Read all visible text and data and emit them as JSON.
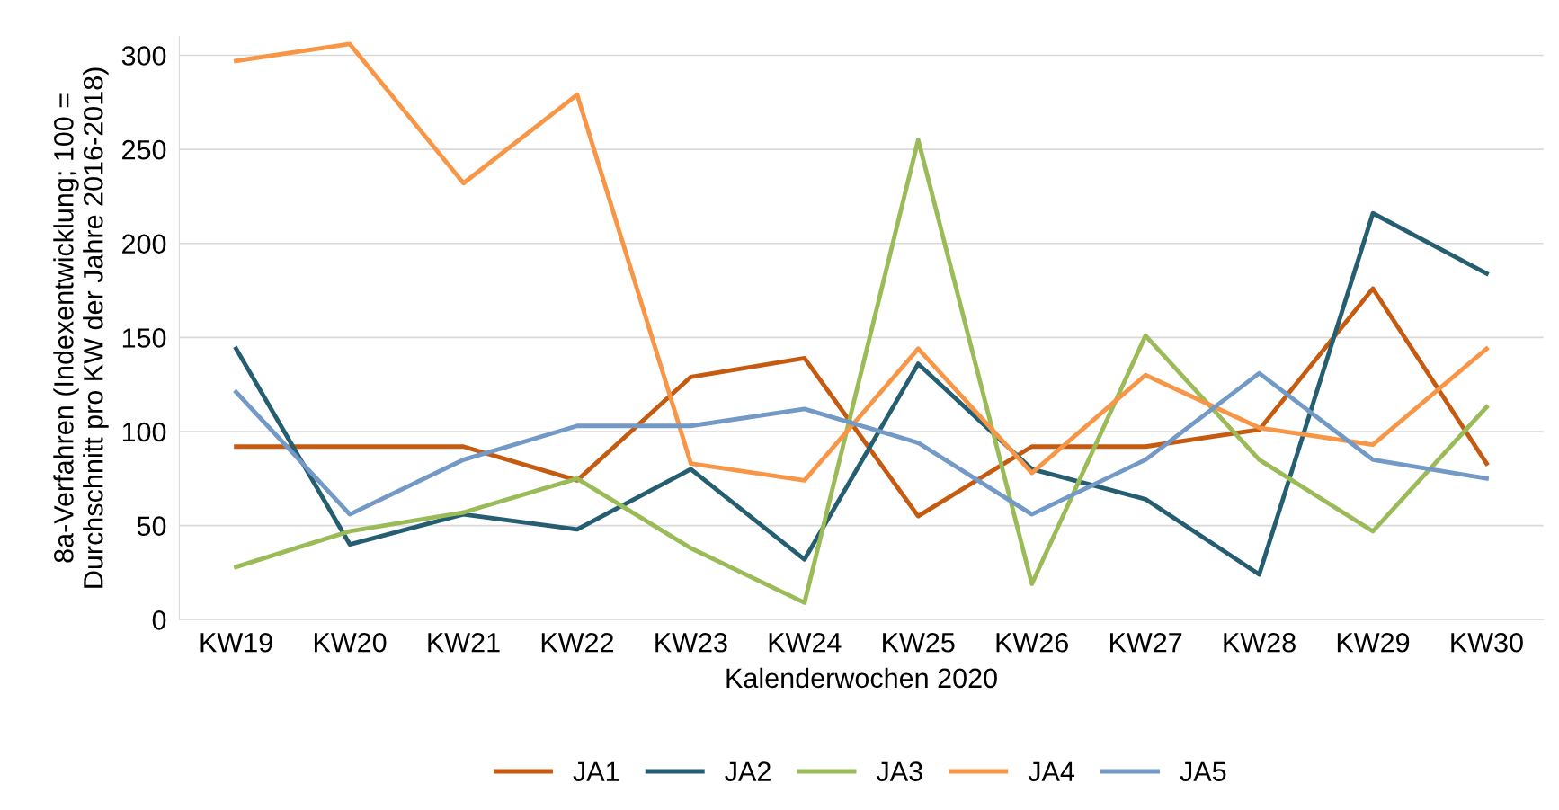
{
  "chart_data": {
    "type": "line",
    "xlabel": "Kalenderwochen 2020",
    "ylabel": "8a-Verfahren (Indexentwicklung; 100 =\nDurchschnitt pro KW der Jahre 2016-2018)",
    "categories": [
      "KW19",
      "KW20",
      "KW21",
      "KW22",
      "KW23",
      "KW24",
      "KW25",
      "KW26",
      "KW27",
      "KW28",
      "KW29",
      "KW30"
    ],
    "series": [
      {
        "name": "JA1",
        "color": "#c55a11",
        "values": [
          92,
          92,
          92,
          74,
          129,
          139,
          55,
          92,
          92,
          101,
          176,
          83
        ]
      },
      {
        "name": "JA2",
        "color": "#255e70",
        "values": [
          144,
          40,
          56,
          48,
          80,
          32,
          136,
          80,
          64,
          24,
          216,
          184
        ]
      },
      {
        "name": "JA3",
        "color": "#9bbb59",
        "values": [
          28,
          47,
          57,
          75,
          38,
          9,
          255,
          19,
          151,
          85,
          47,
          113
        ]
      },
      {
        "name": "JA4",
        "color": "#f79646",
        "values": [
          297,
          306,
          232,
          279,
          83,
          74,
          144,
          78,
          130,
          102,
          93,
          144
        ]
      },
      {
        "name": "JA5",
        "color": "#7399c6",
        "values": [
          121,
          56,
          85,
          103,
          103,
          112,
          94,
          56,
          85,
          131,
          85,
          75
        ]
      }
    ],
    "ylim": [
      0,
      310
    ],
    "yticks": [
      0,
      50,
      100,
      150,
      200,
      250,
      300
    ],
    "grid": "y",
    "legend": "bottom",
    "marker": "none",
    "line_style": "solid"
  }
}
